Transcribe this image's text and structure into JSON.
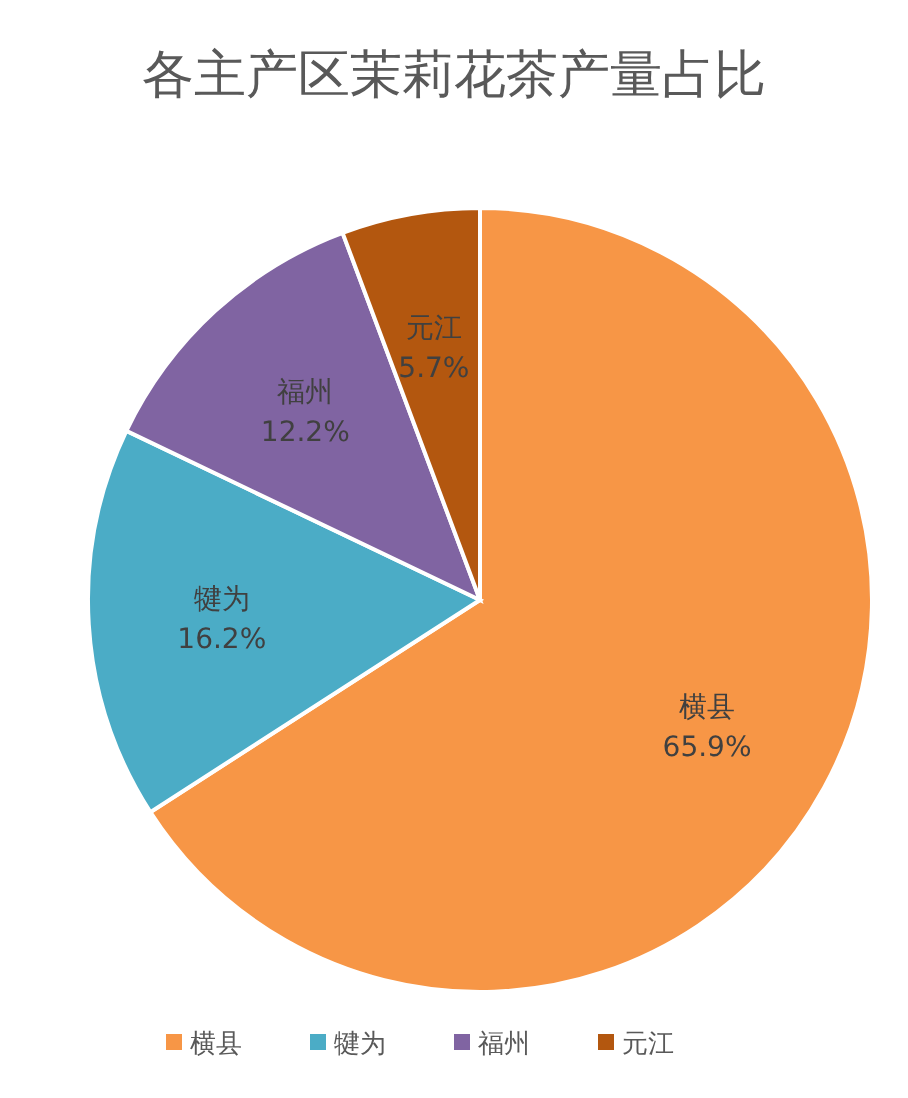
{
  "chart_data": {
    "type": "pie",
    "title": "各主产区茉莉花茶产量占比",
    "categories": [
      "横县",
      "犍为",
      "福州",
      "元江"
    ],
    "values": [
      65.9,
      16.2,
      12.2,
      5.7
    ],
    "value_labels": [
      "65.9%",
      "16.2%",
      "12.2%",
      "5.7%"
    ],
    "colors": [
      "#f79646",
      "#4bacc6",
      "#8064a2",
      "#b3570f"
    ],
    "legend": "bottom"
  }
}
